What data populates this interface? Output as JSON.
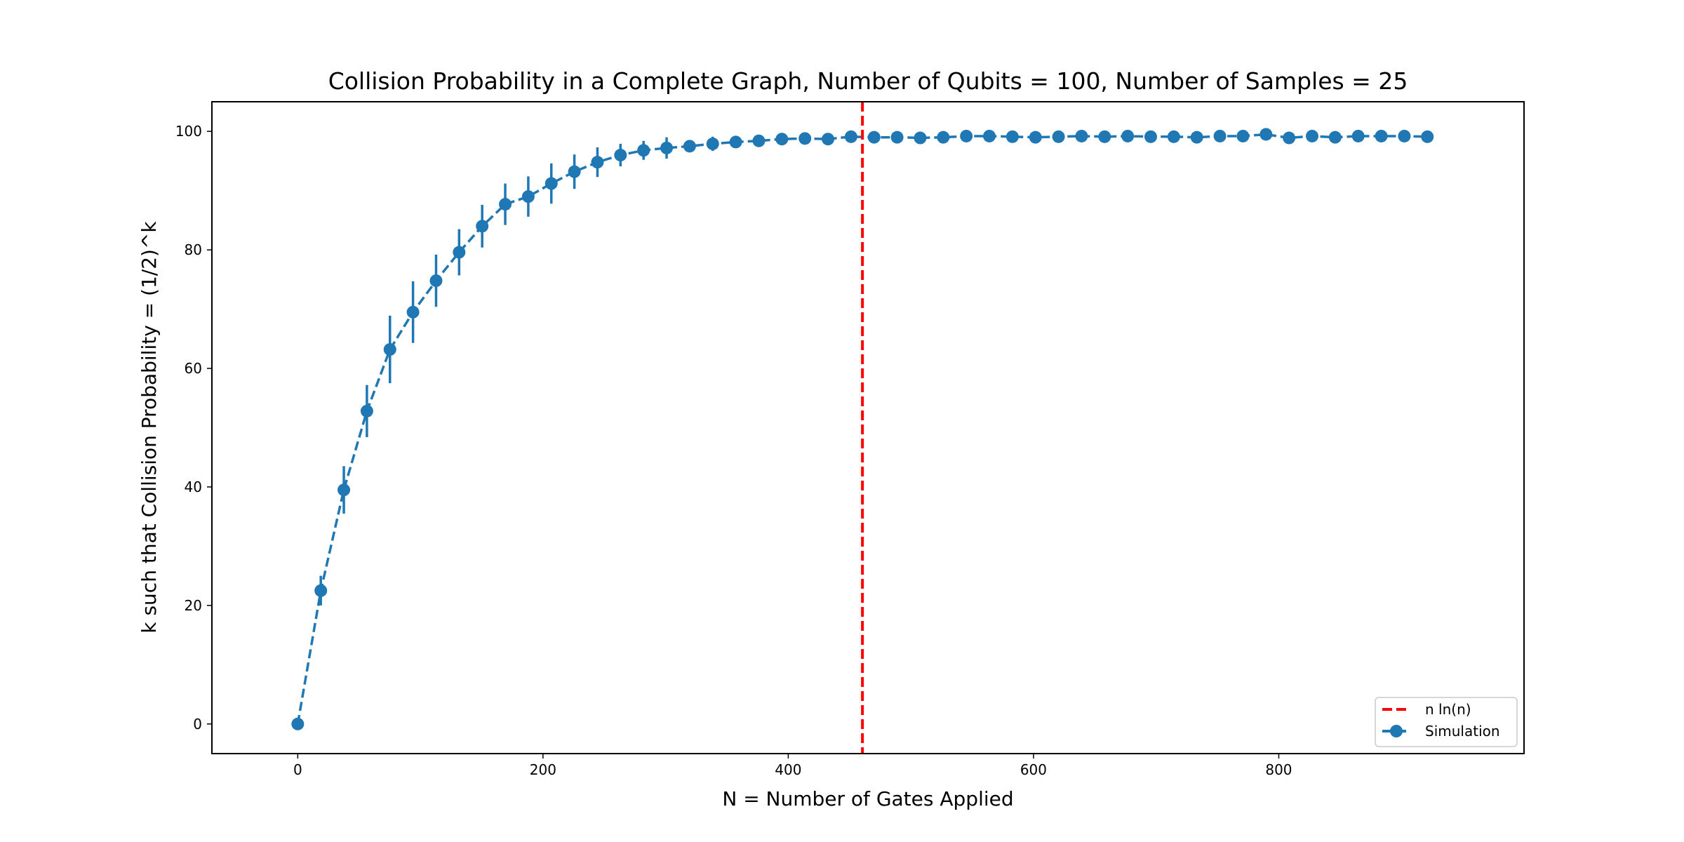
{
  "chart_data": {
    "type": "line",
    "title": "Collision Probability in a Complete Graph, Number of Qubits = 100, Number of Samples = 25",
    "xlabel": "N = Number of Gates Applied",
    "ylabel": "k such that Collision Probability = (1/2)^k",
    "xlim": [
      -70,
      1000
    ],
    "ylim": [
      -5,
      105
    ],
    "xticks": [
      0,
      200,
      400,
      600,
      800
    ],
    "yticks": [
      0,
      20,
      40,
      60,
      80,
      100
    ],
    "grid": false,
    "legend_position": "lower-right",
    "vline": {
      "name": "n ln(n)",
      "x": 460.5,
      "color": "#ff0000",
      "style": "dashed"
    },
    "series": [
      {
        "name": "Simulation",
        "color": "#1f77b4",
        "style": "dashed",
        "marker": "circle",
        "x": [
          0,
          18.8,
          37.6,
          56.4,
          75.2,
          94,
          112.8,
          131.6,
          150.4,
          169.2,
          188,
          206.8,
          225.6,
          244.4,
          263.2,
          282,
          300.8,
          319.6,
          338.4,
          357.2,
          376,
          394.8,
          413.6,
          432.4,
          451.2,
          470,
          488.8,
          507.6,
          526.4,
          545.2,
          564,
          582.8,
          601.6,
          620.4,
          639.2,
          658,
          676.8,
          695.6,
          714.4,
          733.2,
          752,
          770.8,
          789.6,
          808.4,
          827.2,
          846,
          864.8,
          883.6,
          902.4,
          921.2
        ],
        "y": [
          0,
          22.5,
          39.5,
          52.8,
          63.2,
          69.5,
          74.8,
          79.6,
          84,
          87.7,
          89,
          91.2,
          93.2,
          94.8,
          96,
          96.8,
          97.2,
          97.5,
          97.9,
          98.2,
          98.4,
          98.7,
          98.8,
          98.7,
          99.1,
          99,
          99,
          98.9,
          99,
          99.2,
          99.2,
          99.1,
          99,
          99.1,
          99.2,
          99.1,
          99.2,
          99.1,
          99.1,
          99,
          99.2,
          99.2,
          99.5,
          98.9,
          99.2,
          99,
          99.2,
          99.2,
          99.2,
          99.1
        ],
        "yerr": [
          0,
          2.5,
          4,
          4.4,
          5.7,
          5.2,
          4.4,
          3.9,
          3.6,
          3.5,
          3.4,
          3.4,
          2.9,
          2.5,
          1.9,
          1.6,
          1.8,
          1.0,
          1.2,
          0.9,
          1.0,
          0.8,
          0.5,
          0.6,
          0.5,
          0.5,
          0.4,
          0.4,
          0.4,
          0.4,
          0.4,
          0.4,
          0.4,
          0.4,
          0.4,
          0.4,
          0.4,
          0.4,
          0.4,
          0.4,
          0.4,
          0.4,
          0.4,
          0.4,
          0.4,
          0.4,
          0.4,
          0.4,
          0.4,
          0.4
        ]
      }
    ]
  }
}
